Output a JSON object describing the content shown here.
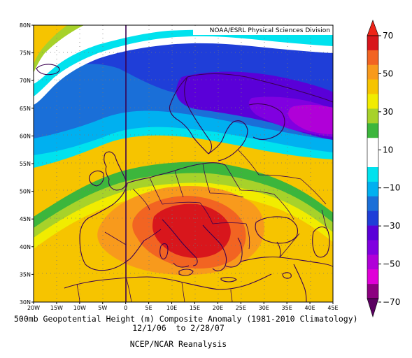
{
  "credit": "NOAA/ESRL Physical Sciences Division",
  "caption": {
    "line1": "500mb Geopotential Height (m) Composite Anomaly (1981-2010 Climatology)",
    "line2": "12/1/06  to 2/28/07",
    "line3": "NCEP/NCAR Reanalysis"
  },
  "map": {
    "lon_range": [
      -20,
      45
    ],
    "lat_range": [
      30,
      80
    ],
    "lon_ticks": [
      "20W",
      "15W",
      "10W",
      "5W",
      "0",
      "5E",
      "10E",
      "15E",
      "20E",
      "25E",
      "30E",
      "35E",
      "40E",
      "45E"
    ],
    "lat_ticks": [
      "30N",
      "35N",
      "40N",
      "45N",
      "50N",
      "55N",
      "60N",
      "65N",
      "70N",
      "75N",
      "80N"
    ],
    "projection": "equirectangular",
    "grid": "dotted"
  },
  "colorbar": {
    "labels": [
      "70",
      "50",
      "30",
      "10",
      "−10",
      "−30",
      "−50",
      "−70"
    ],
    "colors": [
      "#d8161c",
      "#f26422",
      "#f89a1c",
      "#f6c400",
      "#f1ec00",
      "#a7d22a",
      "#3cb63c",
      "#ffffff",
      "#ffffff",
      "#00e2ee",
      "#00b0f0",
      "#1a6fd8",
      "#1f3ed8",
      "#5a00d8",
      "#8000e0",
      "#b000d8",
      "#e000d8",
      "#8c0080"
    ]
  },
  "colors": {
    "anom_p60": "#d8161c",
    "anom_p50": "#f26422",
    "anom_p40": "#f89a1c",
    "anom_p30": "#f6c400",
    "anom_p20": "#f1ec00",
    "anom_p10": "#a7d22a",
    "anom_0": "#3cb63c",
    "neutral": "#ffffff",
    "anom_m10": "#00e2ee",
    "anom_m20": "#00b0f0",
    "anom_m30": "#1a6fd8",
    "anom_m40": "#1f3ed8",
    "anom_m50": "#5a00d8",
    "anom_m60": "#8000e0",
    "anom_m70": "#b000d8"
  }
}
